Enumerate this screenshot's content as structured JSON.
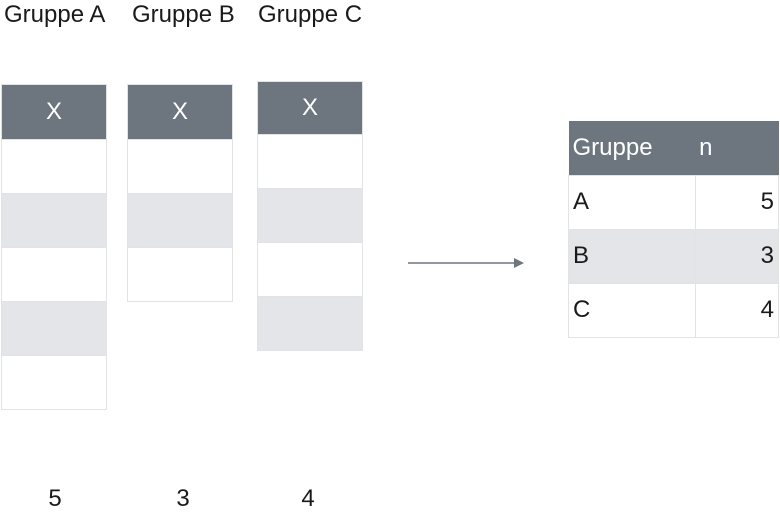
{
  "group_titles": [
    "Gruppe A",
    "Gruppe B",
    "Gruppe C"
  ],
  "column_header": "X",
  "groups": [
    {
      "name": "Gruppe A",
      "header": "X",
      "rows": 5,
      "count": "5"
    },
    {
      "name": "Gruppe B",
      "header": "X",
      "rows": 3,
      "count": "3"
    },
    {
      "name": "Gruppe C",
      "header": "X",
      "rows": 4,
      "count": "4"
    }
  ],
  "result_table": {
    "headers": [
      "Gruppe",
      "n"
    ],
    "rows": [
      {
        "gruppe": "A",
        "n": "5"
      },
      {
        "gruppe": "B",
        "n": "3"
      },
      {
        "gruppe": "C",
        "n": "4"
      }
    ]
  },
  "colors": {
    "header_bg": "#6d767e",
    "stripe_bg": "#e4e5e8",
    "arrow": "#6d767e"
  }
}
